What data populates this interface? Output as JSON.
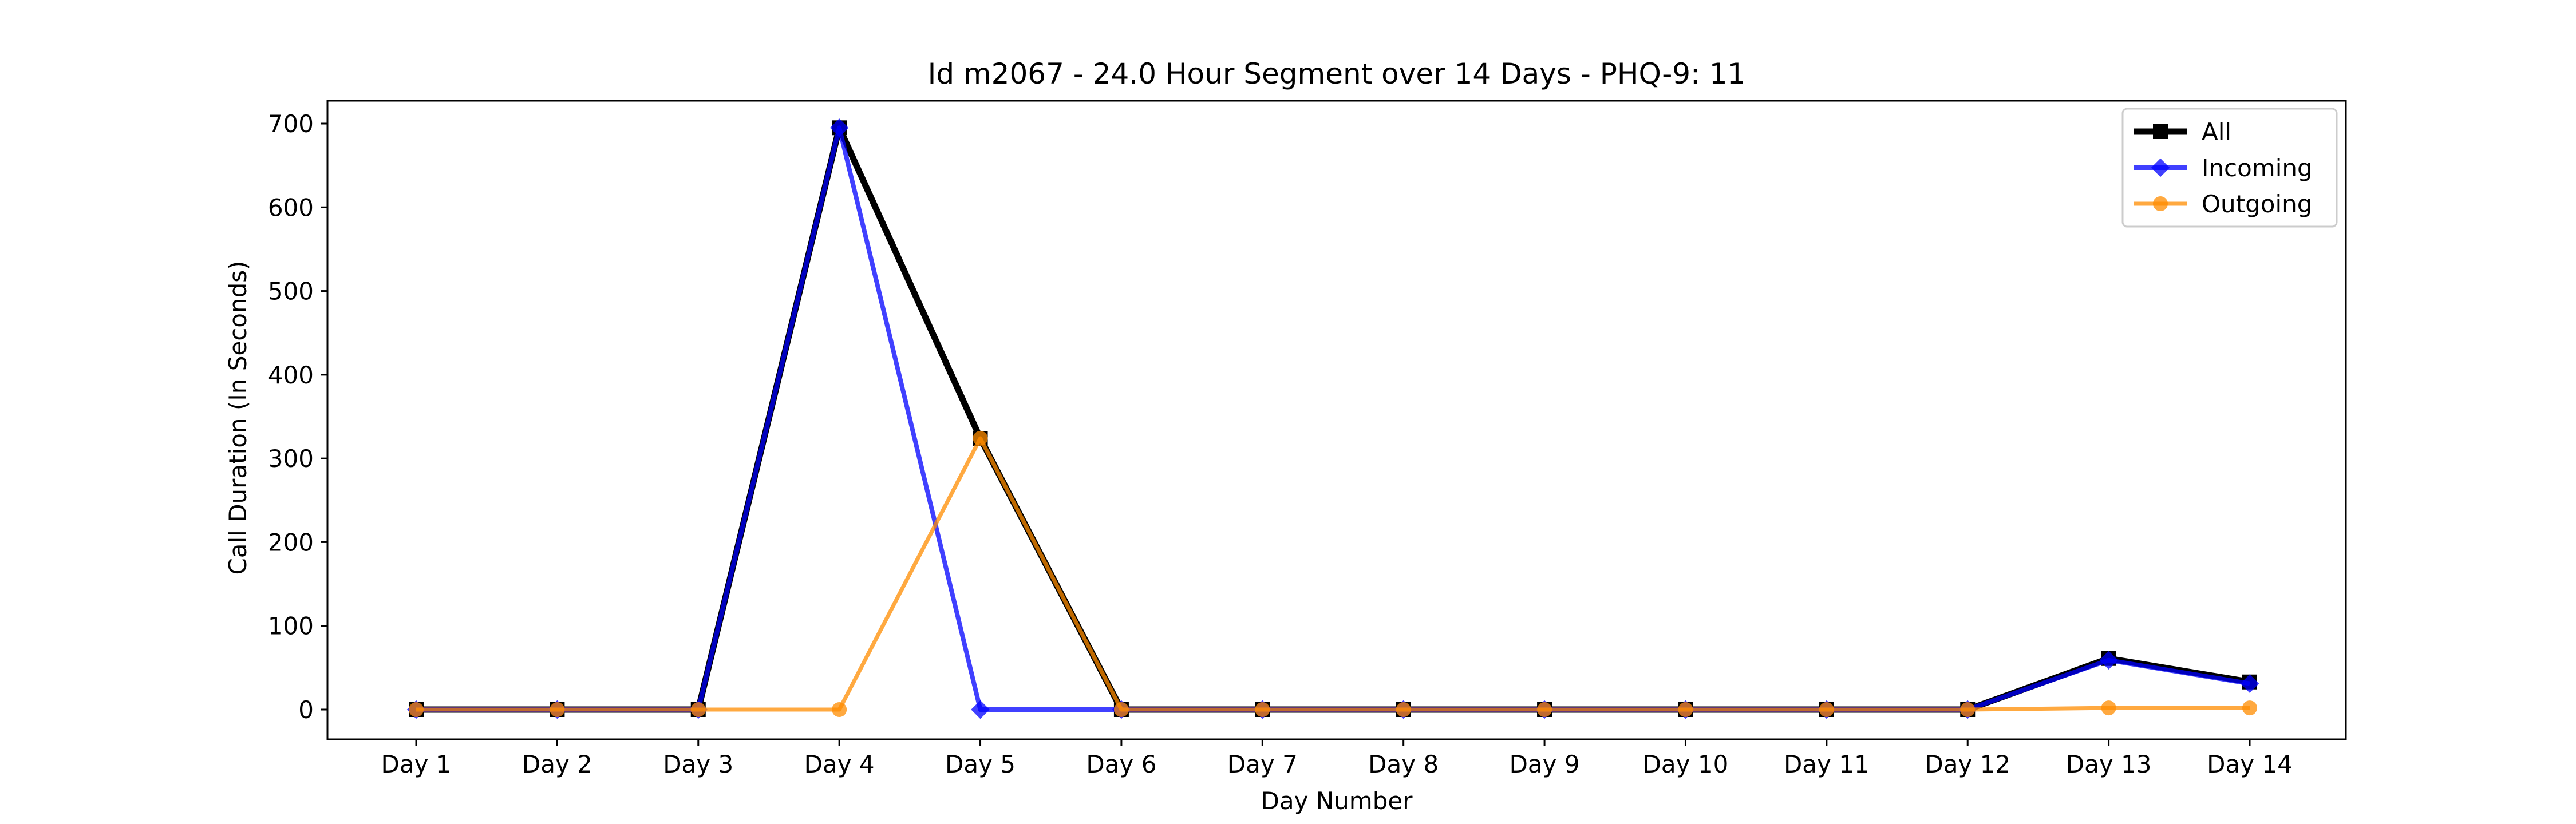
{
  "chart_data": {
    "type": "line",
    "title": "Id m2067 - 24.0 Hour Segment over 14 Days - PHQ-9: 11",
    "xlabel": "Day Number",
    "ylabel": "Call Duration (In Seconds)",
    "categories": [
      "Day 1",
      "Day 2",
      "Day 3",
      "Day 4",
      "Day 5",
      "Day 6",
      "Day 7",
      "Day 8",
      "Day 9",
      "Day 10",
      "Day 11",
      "Day 12",
      "Day 13",
      "Day 14"
    ],
    "ylim": [
      -35,
      730
    ],
    "yticks": [
      0,
      100,
      200,
      300,
      400,
      500,
      600,
      700
    ],
    "grid": false,
    "legend_position": "top-right",
    "series": [
      {
        "name": "All",
        "color": "#000000",
        "marker": "square",
        "values": [
          0,
          0,
          0,
          695,
          324,
          0,
          0,
          0,
          0,
          0,
          0,
          0,
          61,
          33
        ]
      },
      {
        "name": "Incoming",
        "color": "#0000ff",
        "marker": "diamond",
        "values": [
          0,
          0,
          0,
          695,
          0,
          0,
          0,
          0,
          0,
          0,
          0,
          0,
          59,
          31
        ]
      },
      {
        "name": "Outgoing",
        "color": "#ff8c00",
        "marker": "circle",
        "values": [
          0,
          0,
          0,
          0,
          324,
          0,
          0,
          0,
          0,
          0,
          0,
          0,
          2,
          2
        ]
      }
    ]
  }
}
